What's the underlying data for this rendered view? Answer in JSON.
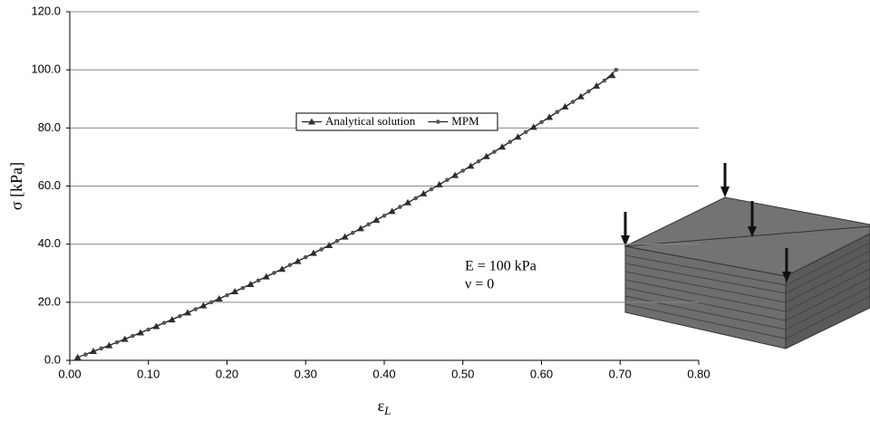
{
  "chart_data": {
    "type": "line",
    "y_label": "σ [kPa]",
    "x_label": {
      "symbol": "ε",
      "subscript": "L"
    },
    "annotations": [
      "E = 100 kPa",
      "ν = 0"
    ],
    "xlim": [
      0,
      0.8
    ],
    "ylim": [
      0,
      120
    ],
    "xticks": [
      {
        "value": 0,
        "label": "0.00"
      },
      {
        "value": 0.1,
        "label": "0.10"
      },
      {
        "value": 0.2,
        "label": "0.20"
      },
      {
        "value": 0.3,
        "label": "0.30"
      },
      {
        "value": 0.4,
        "label": "0.40"
      },
      {
        "value": 0.5,
        "label": "0.50"
      },
      {
        "value": 0.6,
        "label": "0.60"
      },
      {
        "value": 0.7,
        "label": "0.70"
      },
      {
        "value": 0.8,
        "label": "0.80"
      }
    ],
    "yticks": [
      {
        "value": 0,
        "label": "0.0"
      },
      {
        "value": 20,
        "label": "20.0"
      },
      {
        "value": 40,
        "label": "40.0"
      },
      {
        "value": 60,
        "label": "60.0"
      },
      {
        "value": 80,
        "label": "80.0"
      },
      {
        "value": 100,
        "label": "100.0"
      },
      {
        "value": 120,
        "label": "120.0"
      }
    ],
    "grid": true,
    "legend": "upper center",
    "series": [
      {
        "name": "Analytical solution",
        "color": "#333333",
        "marker": "triangle",
        "x": [
          0.01,
          0.03,
          0.05,
          0.07,
          0.09,
          0.11,
          0.13,
          0.15,
          0.17,
          0.19,
          0.21,
          0.23,
          0.25,
          0.27,
          0.29,
          0.31,
          0.33,
          0.35,
          0.37,
          0.39,
          0.41,
          0.43,
          0.45,
          0.47,
          0.49,
          0.51,
          0.53,
          0.55,
          0.57,
          0.59,
          0.61,
          0.63,
          0.65,
          0.67,
          0.69
        ],
        "values": [
          1.0,
          3.1,
          5.1,
          7.3,
          9.5,
          11.7,
          14.0,
          16.4,
          18.8,
          21.2,
          23.7,
          26.2,
          28.8,
          31.4,
          34.1,
          36.9,
          39.6,
          42.5,
          45.4,
          48.3,
          51.3,
          54.3,
          57.4,
          60.5,
          63.7,
          66.9,
          70.2,
          73.5,
          76.9,
          80.3,
          83.7,
          87.3,
          90.8,
          94.5,
          98.1
        ]
      },
      {
        "name": "MPM",
        "color": "#555555",
        "marker": "circle",
        "x": [
          0.02,
          0.04,
          0.06,
          0.08,
          0.1,
          0.12,
          0.14,
          0.16,
          0.18,
          0.2,
          0.22,
          0.24,
          0.26,
          0.28,
          0.3,
          0.32,
          0.34,
          0.36,
          0.38,
          0.4,
          0.42,
          0.44,
          0.46,
          0.48,
          0.5,
          0.52,
          0.54,
          0.56,
          0.58,
          0.6,
          0.62,
          0.64,
          0.66,
          0.68,
          0.695
        ],
        "values": [
          2.0,
          4.1,
          6.2,
          8.4,
          10.6,
          12.9,
          15.2,
          17.6,
          20.0,
          22.4,
          24.9,
          27.5,
          30.1,
          32.8,
          35.5,
          38.2,
          41.1,
          43.9,
          46.8,
          49.8,
          52.8,
          55.8,
          58.9,
          62.1,
          65.3,
          68.5,
          71.8,
          75.2,
          78.6,
          82.0,
          85.5,
          89.0,
          92.6,
          96.3,
          100
        ]
      }
    ]
  }
}
